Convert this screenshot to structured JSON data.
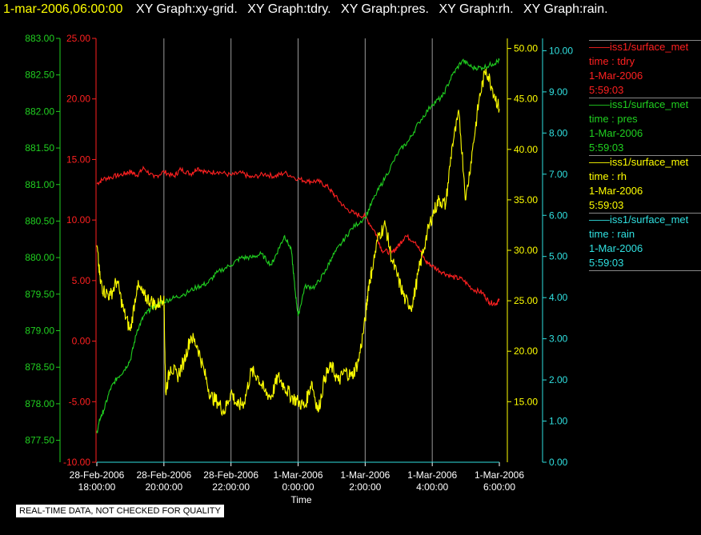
{
  "header": {
    "timestamp": "1-mar-2006,06:00:00",
    "graphs": [
      "XY Graph:xy-grid.",
      "XY Graph:tdry.",
      "XY Graph:pres.",
      "XY Graph:rh.",
      "XY Graph:rain."
    ]
  },
  "legend": [
    {
      "name": "iss1/surface_met",
      "var": "time : tdry",
      "date": "1-Mar-2006",
      "time": "5:59:03",
      "color": "#ff2020"
    },
    {
      "name": "iss1/surface_met",
      "var": "time : pres",
      "date": "1-Mar-2006",
      "time": "5:59:03",
      "color": "#20d020"
    },
    {
      "name": "iss1/surface_met",
      "var": "time : rh",
      "date": "1-Mar-2006",
      "time": "5:59:03",
      "color": "#ffff00"
    },
    {
      "name": "iss1/surface_met",
      "var": "time : rain",
      "date": "1-Mar-2006",
      "time": "5:59:03",
      "color": "#30e0e0"
    }
  ],
  "disclaimer": "REAL-TIME DATA, NOT CHECKED FOR QUALITY",
  "chart_data": {
    "type": "line",
    "xlabel": "Time",
    "xlim": [
      18.0,
      30.0
    ],
    "x_ticks": [
      {
        "x": 18,
        "line1": "28-Feb-2006",
        "line2": "18:00:00"
      },
      {
        "x": 20,
        "line1": "28-Feb-2006",
        "line2": "20:00:00"
      },
      {
        "x": 22,
        "line1": "28-Feb-2006",
        "line2": "22:00:00"
      },
      {
        "x": 24,
        "line1": "1-Mar-2006",
        "line2": "0:00:00"
      },
      {
        "x": 26,
        "line1": "1-Mar-2006",
        "line2": "2:00:00"
      },
      {
        "x": 28,
        "line1": "1-Mar-2006",
        "line2": "4:00:00"
      },
      {
        "x": 30,
        "line1": "1-Mar-2006",
        "line2": "6:00:00"
      }
    ],
    "x_units": "hours since 28-Feb-2006 00:00",
    "grid_x": true,
    "axes": [
      {
        "id": "pres",
        "side": "left",
        "color": "#20d020",
        "ylim": [
          877.2,
          883.0
        ],
        "ticks": [
          "877.50",
          "878.00",
          "878.50",
          "879.00",
          "879.50",
          "880.00",
          "880.50",
          "881.00",
          "881.50",
          "882.00",
          "882.50",
          "883.00"
        ]
      },
      {
        "id": "tdry",
        "side": "left",
        "color": "#ff2020",
        "ylim": [
          -10.0,
          25.0
        ],
        "ticks": [
          "-10.00",
          "-5.00",
          "0.00",
          "5.00",
          "10.00",
          "15.00",
          "20.00",
          "25.00"
        ]
      },
      {
        "id": "rh",
        "side": "right",
        "color": "#ffff00",
        "ylim": [
          9.0,
          51.0
        ],
        "ticks": [
          "15.00",
          "20.00",
          "25.00",
          "30.00",
          "35.00",
          "40.00",
          "45.00",
          "50.00"
        ]
      },
      {
        "id": "rain",
        "side": "right",
        "color": "#30e0e0",
        "ylim": [
          0.0,
          10.3
        ],
        "ticks": [
          "0.00",
          "1.00",
          "2.00",
          "3.00",
          "4.00",
          "5.00",
          "6.00",
          "7.00",
          "8.00",
          "9.00",
          "10.00"
        ]
      }
    ],
    "series": [
      {
        "name": "tdry",
        "axis": "tdry",
        "color": "#ff2020",
        "x": [
          18.0,
          18.2,
          18.5,
          18.8,
          19.0,
          19.2,
          19.4,
          19.7,
          20.0,
          20.3,
          20.5,
          20.8,
          21.0,
          21.3,
          21.6,
          22.0,
          22.3,
          22.6,
          23.0,
          23.3,
          23.6,
          24.0,
          24.3,
          24.6,
          24.9,
          25.1,
          25.4,
          25.7,
          26.0,
          26.3,
          26.5,
          26.8,
          27.0,
          27.2,
          27.5,
          27.8,
          28.0,
          28.3,
          28.6,
          28.9,
          29.2,
          29.5,
          29.7,
          29.9,
          30.0
        ],
        "y": [
          13.0,
          13.4,
          13.6,
          13.8,
          14.0,
          13.7,
          14.3,
          13.5,
          14.0,
          13.6,
          14.2,
          13.8,
          14.3,
          13.9,
          14.0,
          13.7,
          13.9,
          13.5,
          13.8,
          13.6,
          13.9,
          13.4,
          13.2,
          13.2,
          12.7,
          12.0,
          11.0,
          10.5,
          10.3,
          9.0,
          7.5,
          7.3,
          7.9,
          8.7,
          8.2,
          6.6,
          6.2,
          5.7,
          5.3,
          5.1,
          4.3,
          4.0,
          3.2,
          3.1,
          3.4
        ]
      },
      {
        "name": "pres",
        "axis": "pres",
        "color": "#20d020",
        "x": [
          18.0,
          18.1,
          18.2,
          18.4,
          18.6,
          18.8,
          19.0,
          19.2,
          19.4,
          19.6,
          19.8,
          20.0,
          20.3,
          20.6,
          21.0,
          21.3,
          21.6,
          22.0,
          22.3,
          22.6,
          22.9,
          23.2,
          23.4,
          23.6,
          23.8,
          23.9,
          24.0,
          24.2,
          24.5,
          24.8,
          25.0,
          25.3,
          25.6,
          26.0,
          26.3,
          26.6,
          27.0,
          27.3,
          27.6,
          28.0,
          28.3,
          28.6,
          28.9,
          29.2,
          29.5,
          29.8,
          30.0
        ],
        "y": [
          877.6,
          877.8,
          877.9,
          878.2,
          878.35,
          878.45,
          878.6,
          879.0,
          879.2,
          879.3,
          879.35,
          879.4,
          879.45,
          879.5,
          879.6,
          879.65,
          879.8,
          879.9,
          880.0,
          880.0,
          880.05,
          879.9,
          880.1,
          880.3,
          880.1,
          879.6,
          879.2,
          879.6,
          879.6,
          879.8,
          880.0,
          880.2,
          880.4,
          880.55,
          880.85,
          881.1,
          881.45,
          881.6,
          881.85,
          882.1,
          882.2,
          882.5,
          882.7,
          882.6,
          882.6,
          882.65,
          882.7
        ]
      },
      {
        "name": "rh",
        "axis": "rh",
        "color": "#ffff00",
        "x": [
          18.0,
          18.1,
          18.2,
          18.4,
          18.6,
          18.8,
          19.0,
          19.2,
          19.4,
          19.6,
          19.8,
          20.0,
          20.05,
          20.2,
          20.4,
          20.6,
          20.8,
          21.0,
          21.2,
          21.4,
          21.6,
          21.8,
          22.0,
          22.2,
          22.4,
          22.6,
          22.8,
          23.0,
          23.2,
          23.4,
          23.6,
          23.8,
          24.0,
          24.2,
          24.4,
          24.6,
          24.8,
          25.0,
          25.2,
          25.4,
          25.6,
          25.8,
          26.0,
          26.1,
          26.2,
          26.4,
          26.6,
          26.8,
          27.0,
          27.2,
          27.4,
          27.6,
          27.8,
          28.0,
          28.2,
          28.4,
          28.6,
          28.8,
          29.0,
          29.2,
          29.4,
          29.6,
          29.8,
          30.0
        ],
        "y": [
          30.5,
          27.0,
          26.0,
          25.5,
          27.0,
          24.0,
          22.0,
          26.5,
          25.5,
          25.0,
          24.5,
          25.5,
          16.0,
          18.5,
          17.5,
          19.0,
          21.5,
          20.5,
          18.0,
          15.5,
          15.0,
          14.0,
          16.0,
          14.5,
          15.0,
          18.0,
          17.5,
          16.0,
          15.5,
          17.5,
          16.5,
          15.5,
          15.0,
          14.5,
          17.0,
          14.0,
          17.5,
          18.5,
          17.0,
          18.0,
          17.5,
          19.0,
          23.0,
          26.5,
          28.0,
          31.5,
          32.5,
          29.0,
          27.0,
          25.0,
          24.5,
          28.0,
          31.0,
          33.5,
          35.0,
          34.5,
          40.5,
          43.5,
          35.0,
          40.0,
          45.0,
          48.0,
          46.0,
          44.0
        ]
      },
      {
        "name": "rain",
        "axis": "rain",
        "color": "#30e0e0",
        "x": [
          18.0,
          30.0
        ],
        "y": [
          0.0,
          0.0
        ]
      }
    ]
  }
}
